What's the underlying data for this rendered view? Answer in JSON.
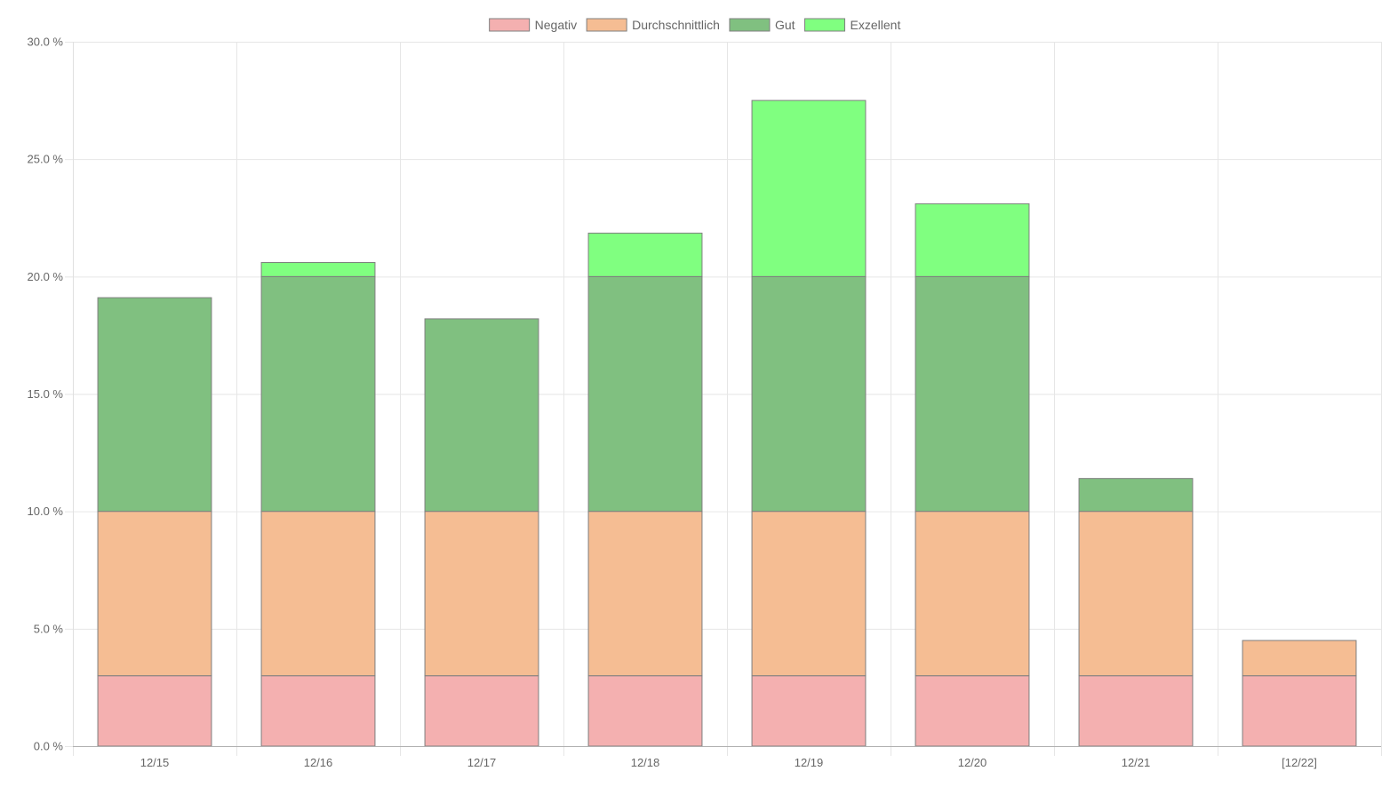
{
  "chart_data": {
    "type": "bar",
    "stacked": true,
    "categories": [
      "12/15",
      "12/16",
      "12/17",
      "12/18",
      "12/19",
      "12/20",
      "12/21",
      "[12/22]"
    ],
    "series": [
      {
        "name": "Negativ",
        "color": "#f4b0b0",
        "values": [
          3.0,
          3.0,
          3.0,
          3.0,
          3.0,
          3.0,
          3.0,
          3.0
        ]
      },
      {
        "name": "Durchschnittlich",
        "color": "#f5bd93",
        "values": [
          7.0,
          7.0,
          7.0,
          7.0,
          7.0,
          7.0,
          7.0,
          1.5
        ]
      },
      {
        "name": "Gut",
        "color": "#80c080",
        "values": [
          9.1,
          10.0,
          8.2,
          10.0,
          10.0,
          10.0,
          1.4,
          0
        ]
      },
      {
        "name": "Exzellent",
        "color": "#80ff80",
        "values": [
          0,
          0.6,
          0,
          1.85,
          7.5,
          3.1,
          0,
          0
        ]
      }
    ],
    "ylim": [
      0,
      30
    ],
    "yticks": [
      0,
      5,
      10,
      15,
      20,
      25,
      30
    ],
    "ytick_labels": [
      "0.0 %",
      "5.0 %",
      "10.0 %",
      "15.0 %",
      "20.0 %",
      "25.0 %",
      "30.0 %"
    ],
    "legend": "top-center",
    "grid": true,
    "title": "",
    "xlabel": "",
    "ylabel": ""
  }
}
